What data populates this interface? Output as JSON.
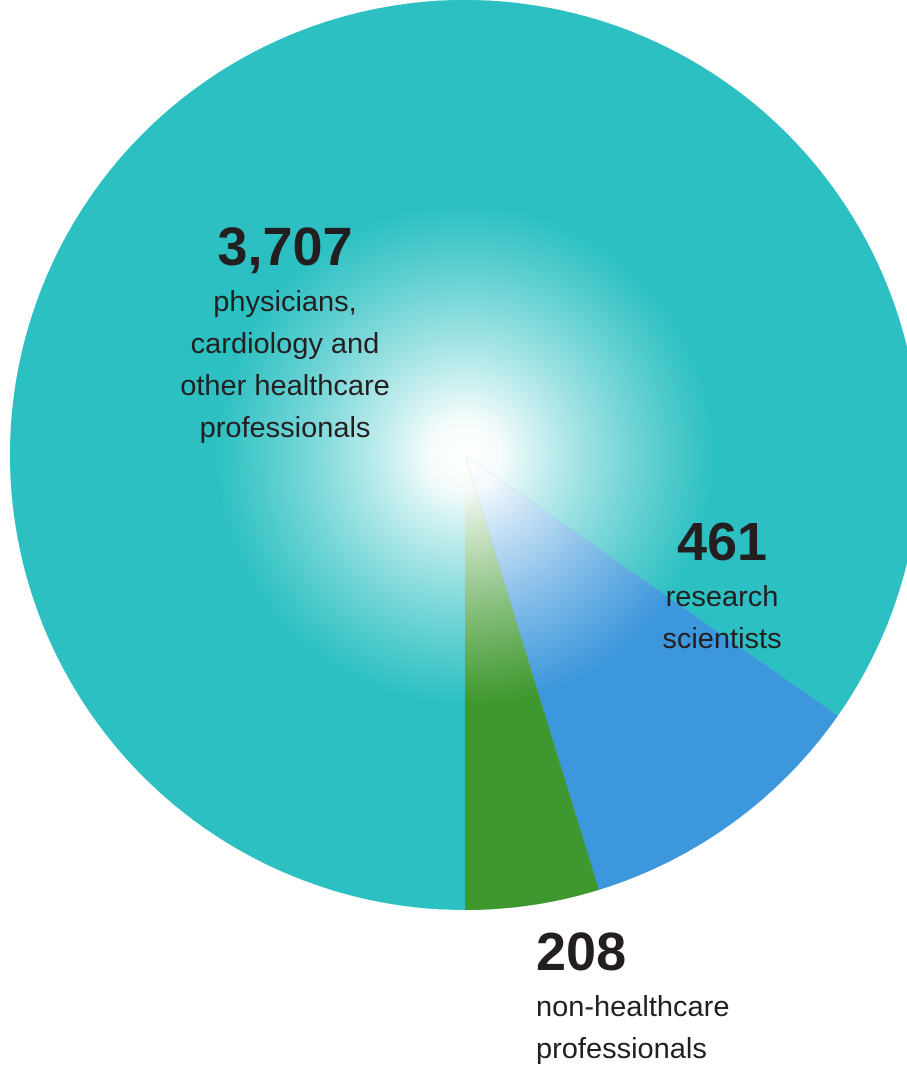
{
  "chart_data": {
    "type": "pie",
    "title": "",
    "series": [
      {
        "name": "",
        "slices": [
          {
            "key": "physicians",
            "value": 3707,
            "value_label": "3,707",
            "description": [
              "physicians,",
              "cardiology and",
              "other healthcare",
              "professionals"
            ],
            "color_edge": "#2cc0c2",
            "color_center": "#ffffff"
          },
          {
            "key": "research",
            "value": 461,
            "value_label": "461",
            "description": [
              "research",
              "scientists"
            ],
            "color_edge": "#3d97dc",
            "color_center": "#ffffff"
          },
          {
            "key": "nonhealthcare",
            "value": 208,
            "value_label": "208",
            "description": [
              "non-healthcare",
              "professionals"
            ],
            "color_edge": "#3f982f",
            "color_center": "#ffffff"
          }
        ]
      }
    ],
    "order": "clockwise from bottom, physicians first",
    "legend": "none (labels placed on and below slices)"
  }
}
